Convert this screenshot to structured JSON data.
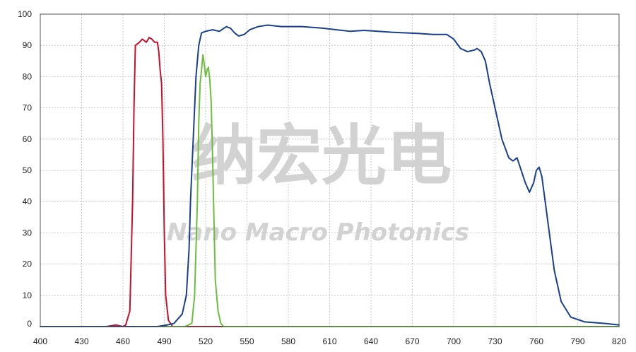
{
  "chart_data": {
    "type": "line",
    "title": "",
    "xlabel": "",
    "ylabel": "",
    "xlim": [
      400,
      820
    ],
    "ylim": [
      0,
      100
    ],
    "grid": true,
    "xticks": [
      400,
      430,
      460,
      490,
      520,
      550,
      580,
      610,
      640,
      670,
      700,
      730,
      760,
      790,
      820
    ],
    "yticks": [
      0,
      10,
      20,
      30,
      40,
      50,
      60,
      70,
      80,
      90,
      100
    ],
    "series": [
      {
        "color": "#c8102e",
        "points": [
          [
            400,
            0
          ],
          [
            448,
            0
          ],
          [
            455,
            0.5
          ],
          [
            460,
            0
          ],
          [
            462,
            0.5
          ],
          [
            465,
            5
          ],
          [
            467,
            40
          ],
          [
            468,
            70
          ],
          [
            469,
            90
          ],
          [
            472,
            91
          ],
          [
            474,
            92
          ],
          [
            477,
            91
          ],
          [
            479,
            92.5
          ],
          [
            481,
            92
          ],
          [
            483,
            91
          ],
          [
            485,
            91
          ],
          [
            486,
            88
          ],
          [
            487,
            82
          ],
          [
            488,
            78
          ],
          [
            489,
            60
          ],
          [
            490,
            30
          ],
          [
            491,
            10
          ],
          [
            493,
            2
          ],
          [
            496,
            0
          ],
          [
            820,
            0
          ]
        ]
      },
      {
        "color": "#6cbf3c",
        "points": [
          [
            400,
            0
          ],
          [
            505,
            0
          ],
          [
            510,
            1
          ],
          [
            512,
            10
          ],
          [
            514,
            40
          ],
          [
            515,
            65
          ],
          [
            516,
            78
          ],
          [
            517,
            82
          ],
          [
            518,
            87
          ],
          [
            519,
            84
          ],
          [
            520,
            80
          ],
          [
            521,
            82
          ],
          [
            522,
            83
          ],
          [
            523,
            79
          ],
          [
            524,
            72
          ],
          [
            525,
            55
          ],
          [
            526,
            35
          ],
          [
            527,
            15
          ],
          [
            529,
            5
          ],
          [
            531,
            1
          ],
          [
            533,
            0
          ],
          [
            820,
            0
          ]
        ]
      },
      {
        "color": "#1a3f8f",
        "points": [
          [
            400,
            0
          ],
          [
            485,
            0
          ],
          [
            492,
            0.5
          ],
          [
            497,
            1
          ],
          [
            503,
            4
          ],
          [
            506,
            10
          ],
          [
            508,
            25
          ],
          [
            509,
            40
          ],
          [
            511,
            60
          ],
          [
            513,
            80
          ],
          [
            515,
            90
          ],
          [
            517,
            94
          ],
          [
            520,
            94.5
          ],
          [
            525,
            95
          ],
          [
            530,
            94.5
          ],
          [
            535,
            96
          ],
          [
            538,
            95.5
          ],
          [
            541,
            94
          ],
          [
            544,
            93
          ],
          [
            548,
            93.5
          ],
          [
            552,
            95
          ],
          [
            558,
            96
          ],
          [
            565,
            96.5
          ],
          [
            575,
            96
          ],
          [
            590,
            96
          ],
          [
            605,
            95.5
          ],
          [
            615,
            95
          ],
          [
            625,
            94.5
          ],
          [
            635,
            94.8
          ],
          [
            645,
            94.5
          ],
          [
            655,
            94.2
          ],
          [
            665,
            94
          ],
          [
            675,
            93.8
          ],
          [
            685,
            93.5
          ],
          [
            695,
            93.5
          ],
          [
            700,
            92
          ],
          [
            705,
            89
          ],
          [
            710,
            88
          ],
          [
            715,
            88.5
          ],
          [
            717,
            89
          ],
          [
            720,
            88
          ],
          [
            723,
            85
          ],
          [
            726,
            78
          ],
          [
            730,
            70
          ],
          [
            735,
            60
          ],
          [
            740,
            54
          ],
          [
            743,
            53
          ],
          [
            746,
            54
          ],
          [
            749,
            50
          ],
          [
            752,
            46
          ],
          [
            755,
            43
          ],
          [
            758,
            46
          ],
          [
            760,
            50
          ],
          [
            762,
            51
          ],
          [
            764,
            48
          ],
          [
            767,
            38
          ],
          [
            770,
            28
          ],
          [
            773,
            18
          ],
          [
            778,
            8
          ],
          [
            785,
            3
          ],
          [
            795,
            1.5
          ],
          [
            810,
            1
          ],
          [
            820,
            0.5
          ]
        ]
      }
    ]
  },
  "watermark": {
    "cn": "纳宏光电",
    "en": "Nano Macro Photonics"
  }
}
